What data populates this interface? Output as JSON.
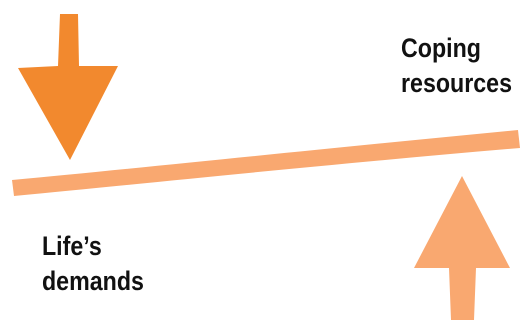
{
  "labels": {
    "coping": [
      "Coping",
      "resources"
    ],
    "demands": [
      "Life’s",
      "demands"
    ]
  },
  "colors": {
    "beam": "#f9a870",
    "down_arrow": "#f2892e",
    "up_arrow": "#f9a870",
    "text": "#111111"
  },
  "icons": {
    "down_arrow": "arrow-down-icon",
    "up_arrow": "arrow-up-icon"
  }
}
